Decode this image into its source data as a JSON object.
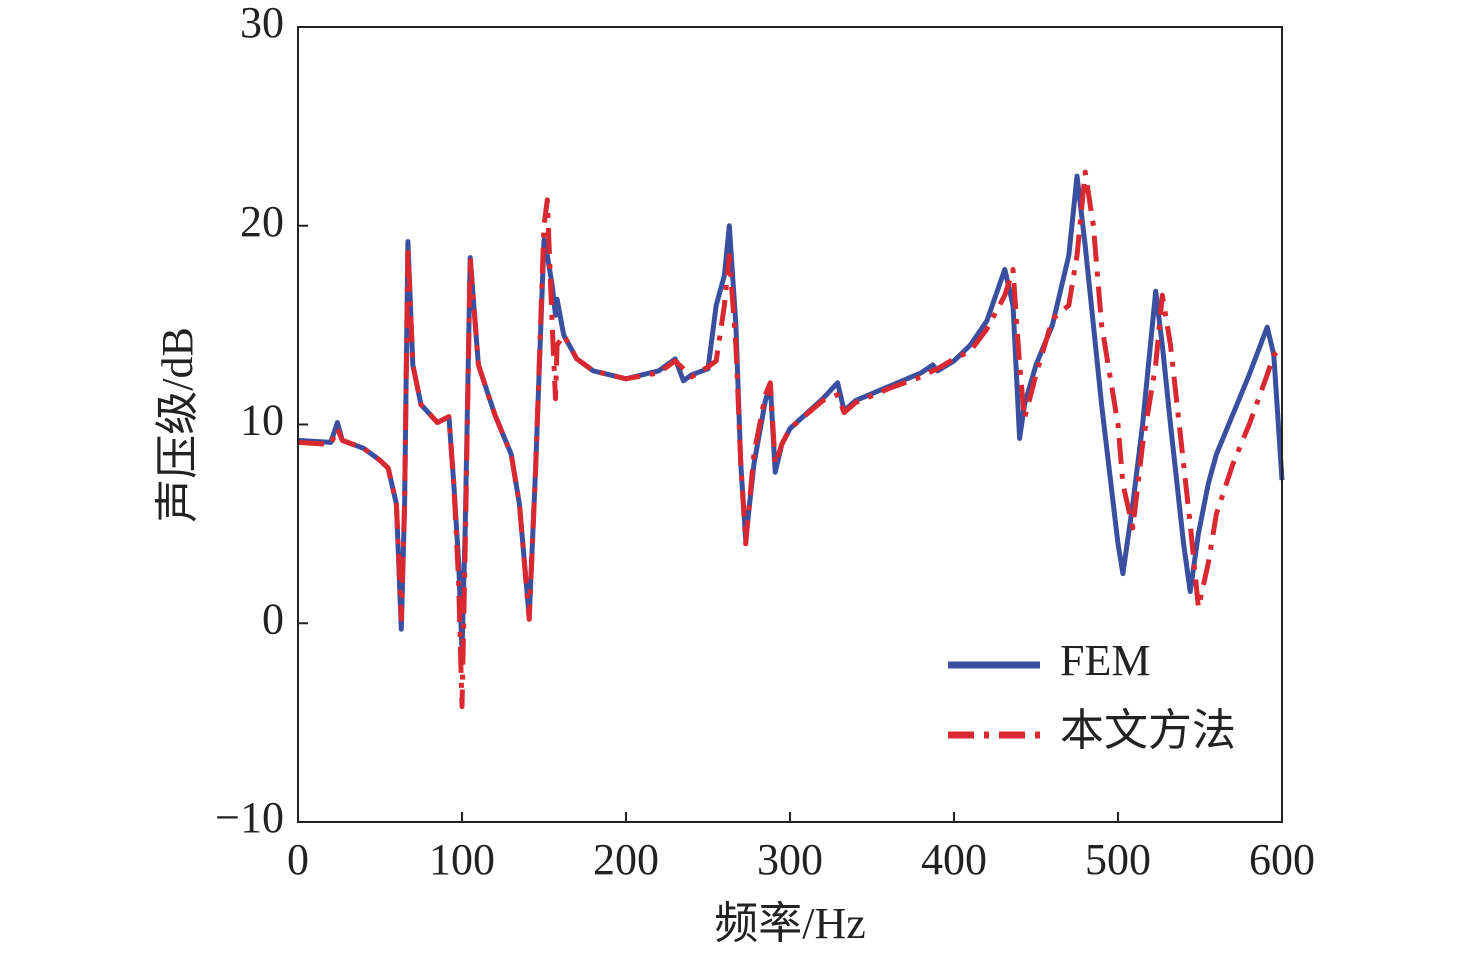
{
  "chart_data": {
    "type": "line",
    "xlabel": "频率/Hz",
    "ylabel": "声压级/dB",
    "x": [
      0,
      20,
      24,
      27,
      40,
      50,
      55,
      60,
      63,
      65,
      67,
      70,
      75,
      85,
      92,
      95,
      98,
      100,
      102,
      105,
      110,
      120,
      130,
      135,
      141,
      145,
      150,
      152,
      155,
      157,
      158,
      162,
      170,
      180,
      200,
      220,
      230,
      235,
      240,
      250,
      255,
      260,
      263,
      267,
      270,
      273,
      278,
      285,
      288,
      291,
      295,
      300,
      320,
      329,
      333,
      340,
      360,
      380,
      387,
      390,
      400,
      410,
      420,
      431,
      436,
      440,
      443,
      450,
      460,
      470,
      475,
      480,
      485,
      490,
      500,
      503,
      509,
      515,
      523,
      527,
      532,
      540,
      544,
      549,
      555,
      560,
      570,
      580,
      591,
      595,
      600
    ],
    "series": [
      {
        "name": "FEM",
        "color": "#3a4fa0",
        "dash": "solid",
        "values": [
          9.2,
          9.1,
          10.1,
          9.2,
          8.8,
          8.2,
          7.8,
          6,
          -0.3,
          6,
          19.2,
          13,
          11,
          10.1,
          10.4,
          7,
          3,
          -1.4,
          5,
          18.4,
          13,
          10.5,
          8.5,
          6,
          0.3,
          8,
          19.3,
          18.5,
          17,
          15.5,
          16.3,
          14.5,
          13.3,
          12.7,
          12.3,
          12.7,
          13.3,
          12.2,
          12.5,
          12.8,
          16,
          17.5,
          20,
          15,
          8,
          4.2,
          8,
          11.2,
          12,
          7.6,
          9,
          9.8,
          11.3,
          12.1,
          10.7,
          11.2,
          11.9,
          12.6,
          13,
          12.7,
          13.2,
          14,
          15.2,
          17.8,
          16,
          9.3,
          11,
          13,
          15,
          18.5,
          22.5,
          19,
          15,
          11,
          4,
          2.5,
          6,
          10,
          16.7,
          14,
          10,
          4,
          1.6,
          4.5,
          7,
          8.5,
          10.5,
          12.5,
          14.9,
          13.5,
          7.2
        ]
      },
      {
        "name": "本文方法",
        "color": "#d9282f",
        "dash": "dashdot",
        "values": [
          9.1,
          9.0,
          9.8,
          9.2,
          8.8,
          8.2,
          7.8,
          6,
          0.2,
          6,
          19.0,
          13,
          11,
          10.1,
          10.4,
          7,
          2,
          -4.2,
          4,
          18.4,
          13,
          10.5,
          8.5,
          6,
          0.2,
          8,
          20,
          21.3,
          15,
          11.3,
          14,
          14.5,
          13.3,
          12.7,
          12.3,
          12.6,
          13.2,
          12.8,
          12.4,
          12.9,
          13.2,
          16,
          18.5,
          14,
          8,
          4.0,
          8.5,
          11.5,
          12.1,
          8,
          9,
          9.8,
          11.2,
          11.5,
          10.6,
          11.1,
          11.8,
          12.4,
          12.7,
          12.8,
          13.3,
          13.7,
          14.8,
          16.5,
          17.8,
          13,
          10.3,
          12.5,
          15.3,
          16,
          18.5,
          22.7,
          20,
          15,
          10,
          7,
          4.8,
          9,
          13,
          16.5,
          14,
          8,
          5,
          0.8,
          3,
          5.5,
          8,
          10,
          12.5,
          13.5,
          13.8
        ]
      }
    ],
    "xlim": [
      0,
      600
    ],
    "xticks": [
      0,
      100,
      200,
      300,
      400,
      500,
      600
    ],
    "ylim": [
      -10,
      30
    ],
    "yticks": [
      {
        "value": -10,
        "label": "−10"
      },
      0,
      10,
      20,
      30
    ],
    "legend": "lower right",
    "grid": false
  }
}
